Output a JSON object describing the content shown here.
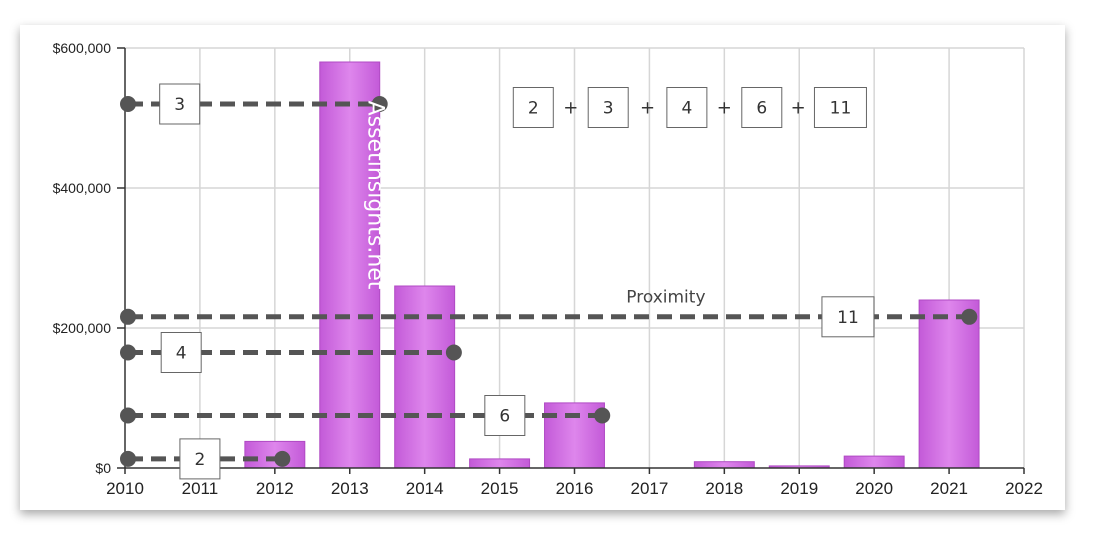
{
  "chart_data": {
    "type": "bar",
    "title": "",
    "xlabel": "",
    "ylabel": "",
    "xlim": [
      2010,
      2022
    ],
    "ylim": [
      0,
      600000
    ],
    "x_ticks": [
      "2010",
      "2011",
      "2012",
      "2013",
      "2014",
      "2015",
      "2016",
      "2017",
      "2018",
      "2019",
      "2020",
      "2021",
      "2022"
    ],
    "y_ticks": [
      {
        "value": 0,
        "label": "$0"
      },
      {
        "value": 200000,
        "label": "$200,000"
      },
      {
        "value": 400000,
        "label": "$400,000"
      },
      {
        "value": 600000,
        "label": "$600,000"
      }
    ],
    "bars": [
      {
        "x": 2012,
        "value": 38000
      },
      {
        "x": 2013,
        "value": 580000
      },
      {
        "x": 2014,
        "value": 260000
      },
      {
        "x": 2015,
        "value": 13000
      },
      {
        "x": 2016,
        "value": 93000
      },
      {
        "x": 2018,
        "value": 9000
      },
      {
        "x": 2019,
        "value": 3000
      },
      {
        "x": 2020,
        "value": 17000
      },
      {
        "x": 2021,
        "value": 240000
      }
    ],
    "grid": true,
    "bar_color": "#c35ad8",
    "bar_highlight": "#de86ec",
    "line_color": "#555555",
    "connectors": [
      {
        "label": "2",
        "value": 13000,
        "x_end": 2012.1,
        "box_x": 2011.0
      },
      {
        "label": "3",
        "value": 520000,
        "x_end": 2013.4,
        "box_x": 2010.73
      },
      {
        "label": "4",
        "value": 165000,
        "x_end": 2014.39,
        "box_x": 2010.75
      },
      {
        "label": "6",
        "value": 75000,
        "x_end": 2016.37,
        "box_x": 2015.07
      },
      {
        "label": "11",
        "value": 216000,
        "x_end": 2021.27,
        "box_x": 2019.65
      }
    ],
    "annotation": {
      "text": "Proximity",
      "x": 2017.22,
      "value": 245000
    },
    "watermark": {
      "text": "Assetinsights.net",
      "x": 2013.25,
      "value": 390000
    },
    "formula": {
      "terms": [
        "2",
        "3",
        "4",
        "6",
        "11"
      ],
      "operator": "+",
      "y_value": 515000,
      "box_x": [
        2015.45,
        2016.45,
        2017.5,
        2018.5,
        2019.55
      ]
    }
  }
}
